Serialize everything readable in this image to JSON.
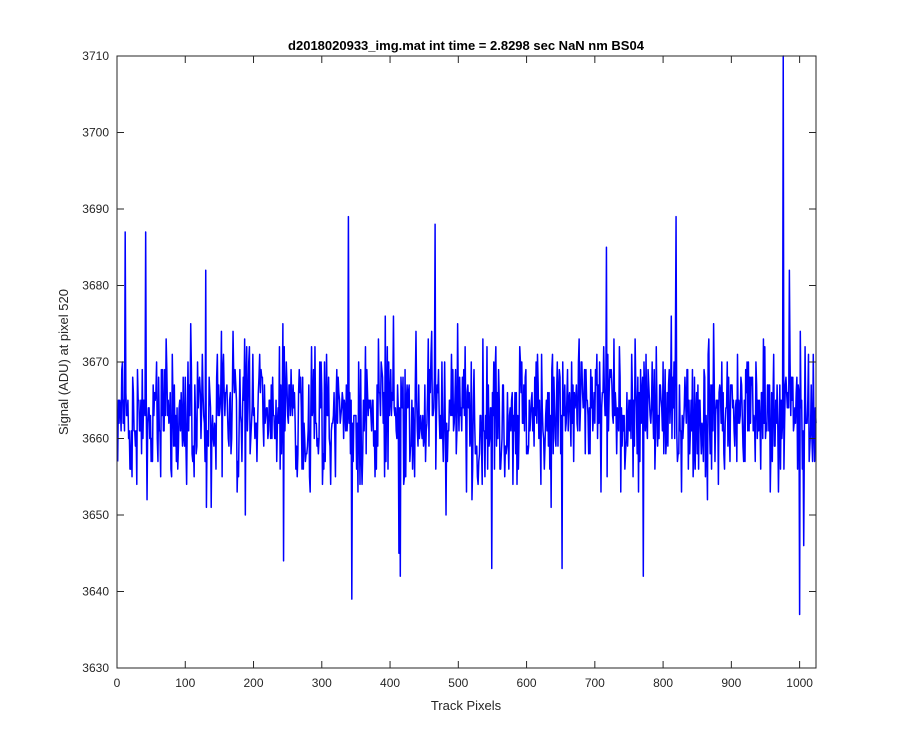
{
  "chart_data": {
    "type": "line",
    "title": "d2018020933_img.mat int time = 2.8298 sec  NaN nm BS04",
    "xlabel": "Track Pixels",
    "ylabel": "Signal (ADU) at pixel 520",
    "xlim": [
      0,
      1024
    ],
    "ylim": [
      3630,
      3710
    ],
    "x_ticks": [
      0,
      100,
      200,
      300,
      400,
      500,
      600,
      700,
      800,
      900,
      1000
    ],
    "y_ticks": [
      3630,
      3640,
      3650,
      3660,
      3670,
      3680,
      3690,
      3700,
      3710
    ],
    "grid": false,
    "box": true,
    "series": [
      {
        "color": "#0000ff",
        "x_start": 1,
        "x_step": 1,
        "mean": 3663.5,
        "noise_std": 6.5,
        "notable_points": [
          {
            "x": 12,
            "y": 3687
          },
          {
            "x": 42,
            "y": 3687
          },
          {
            "x": 130,
            "y": 3682
          },
          {
            "x": 244,
            "y": 3644
          },
          {
            "x": 339,
            "y": 3689
          },
          {
            "x": 344,
            "y": 3639
          },
          {
            "x": 413,
            "y": 3645
          },
          {
            "x": 415,
            "y": 3642
          },
          {
            "x": 466,
            "y": 3688
          },
          {
            "x": 549,
            "y": 3643
          },
          {
            "x": 652,
            "y": 3643
          },
          {
            "x": 717,
            "y": 3685
          },
          {
            "x": 771,
            "y": 3642
          },
          {
            "x": 819,
            "y": 3689
          },
          {
            "x": 976,
            "y": 3710
          },
          {
            "x": 985,
            "y": 3682
          },
          {
            "x": 1000,
            "y": 3637
          },
          {
            "x": 1006,
            "y": 3646
          }
        ],
        "length": 1024
      }
    ]
  }
}
